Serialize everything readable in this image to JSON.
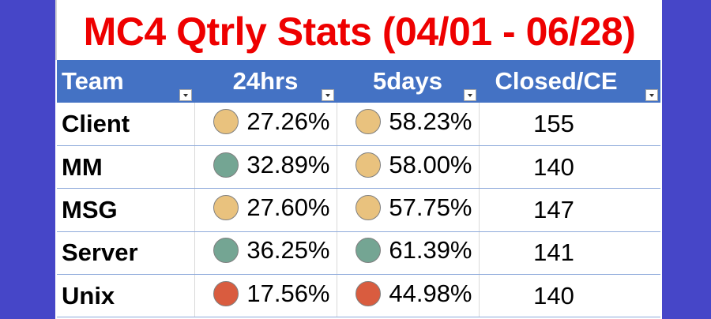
{
  "title": "MC4 Qtrly Stats (04/01 - 06/28)",
  "colors": {
    "title": "#ee0000",
    "header_bg": "#4472c4",
    "background": "#4646c8",
    "yellow": "#e9c27e",
    "green": "#74a593",
    "red": "#d95c3f"
  },
  "table": {
    "headers": {
      "team": "Team",
      "h24": "24hrs",
      "d5": "5days",
      "ce": "Closed/CE"
    },
    "rows": [
      {
        "team": "Client",
        "h24": "27.26%",
        "h24_status": "yellow",
        "d5": "58.23%",
        "d5_status": "yellow",
        "ce": "155"
      },
      {
        "team": "MM",
        "h24": "32.89%",
        "h24_status": "green",
        "d5": "58.00%",
        "d5_status": "yellow",
        "ce": "140"
      },
      {
        "team": "MSG",
        "h24": "27.60%",
        "h24_status": "yellow",
        "d5": "57.75%",
        "d5_status": "yellow",
        "ce": "147"
      },
      {
        "team": "Server",
        "h24": "36.25%",
        "h24_status": "green",
        "d5": "61.39%",
        "d5_status": "green",
        "ce": "141"
      },
      {
        "team": "Unix",
        "h24": "17.56%",
        "h24_status": "red",
        "d5": "44.98%",
        "d5_status": "red",
        "ce": "140"
      }
    ]
  },
  "icons": {
    "filter": "filter-dropdown-icon",
    "status": "status-circle-icon"
  }
}
